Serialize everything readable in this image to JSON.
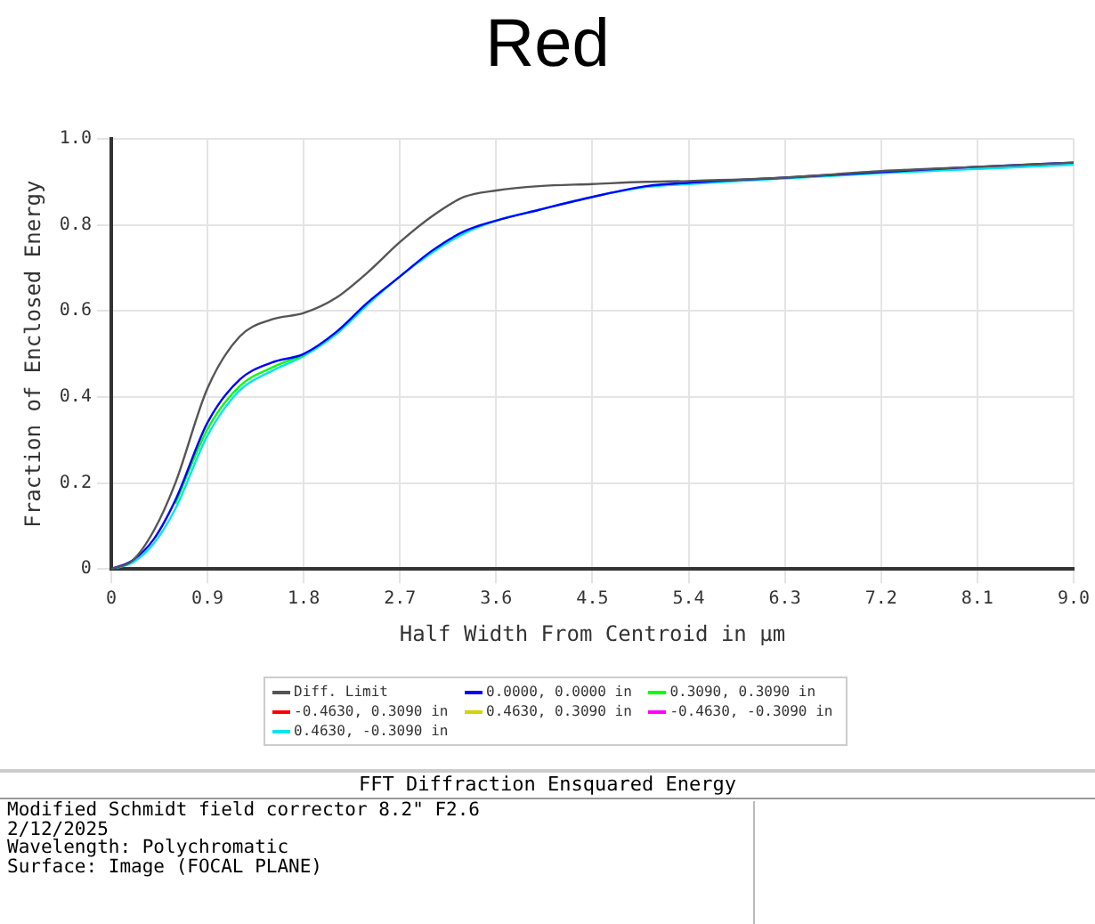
{
  "chart_data": {
    "type": "line",
    "title": "Red",
    "xlabel": "Half Width From Centroid in µm",
    "ylabel": "Fraction of Enclosed Energy",
    "x": [
      0,
      0.2,
      0.4,
      0.6,
      0.9,
      1.2,
      1.5,
      1.8,
      2.1,
      2.4,
      2.7,
      3.0,
      3.3,
      3.6,
      4.0,
      4.5,
      5.0,
      5.4,
      6.3,
      7.2,
      8.1,
      9.0
    ],
    "series": [
      {
        "name": "Diff. Limit",
        "color": "#555555",
        "values": [
          0,
          0.02,
          0.09,
          0.2,
          0.42,
          0.54,
          0.58,
          0.595,
          0.63,
          0.69,
          0.76,
          0.82,
          0.865,
          0.88,
          0.89,
          0.895,
          0.9,
          0.902,
          0.91,
          0.925,
          0.935,
          0.945
        ]
      },
      {
        "name": "0.0000, 0.0000 in",
        "color": "#0000ff",
        "values": [
          0,
          0.02,
          0.07,
          0.16,
          0.34,
          0.44,
          0.48,
          0.5,
          0.55,
          0.62,
          0.68,
          0.74,
          0.785,
          0.81,
          0.835,
          0.865,
          0.89,
          0.898,
          0.91,
          0.923,
          0.935,
          0.945
        ]
      },
      {
        "name": "0.3090, 0.3090 in",
        "color": "#00ff00",
        "values": [
          null,
          null,
          null,
          0.152,
          0.325,
          0.425,
          0.468,
          0.497,
          null,
          null,
          null,
          null,
          null,
          null,
          null,
          null,
          null,
          null,
          null,
          null,
          null,
          null
        ]
      },
      {
        "name": "-0.4630, 0.3090 in",
        "color": "#ff0000",
        "values": [
          null,
          null,
          null,
          null,
          null,
          null,
          null,
          null,
          null,
          null,
          null,
          null,
          null,
          null,
          null,
          null,
          null,
          null,
          null,
          null,
          null,
          null
        ]
      },
      {
        "name": "0.4630, 0.3090 in",
        "color": "#d4d400",
        "values": [
          null,
          null,
          null,
          null,
          null,
          null,
          null,
          null,
          null,
          null,
          null,
          null,
          null,
          null,
          null,
          null,
          null,
          null,
          null,
          null,
          null,
          null
        ]
      },
      {
        "name": "-0.4630, -0.3090 in",
        "color": "#ff00ff",
        "values": [
          null,
          null,
          null,
          null,
          null,
          null,
          null,
          null,
          null,
          null,
          null,
          null,
          null,
          null,
          null,
          null,
          null,
          null,
          null,
          null,
          null,
          null
        ]
      },
      {
        "name": "0.4630, -0.3090 in",
        "color": "#00e5ee",
        "values": [
          0,
          0.015,
          0.06,
          0.14,
          0.31,
          0.415,
          0.46,
          0.495,
          0.545,
          0.615,
          0.68,
          0.735,
          0.78,
          0.81,
          0.835,
          0.865,
          0.888,
          0.895,
          0.908,
          0.92,
          0.93,
          0.94
        ]
      }
    ],
    "xlim": [
      0,
      9
    ],
    "xticks": [
      0,
      0.9,
      1.8,
      2.7,
      3.6,
      4.5,
      5.4,
      6.3,
      7.2,
      8.1,
      {
        "value": 9,
        "label": "9.0"
      }
    ],
    "ylim": [
      0,
      1
    ],
    "yticks": [
      0,
      0.2,
      0.4,
      0.6,
      0.8,
      {
        "value": 1,
        "label": "1.0"
      }
    ],
    "grid": true,
    "legend": "bottom",
    "marker": "none",
    "line_style": "solid",
    "annotations": [
      "FFT Diffraction Ensquared Energy",
      "Modified Schmidt field corrector 8.2\" F2.6",
      "2/12/2025",
      "Wavelength: Polychromatic",
      "Surface: Image (FOCAL PLANE)"
    ]
  }
}
